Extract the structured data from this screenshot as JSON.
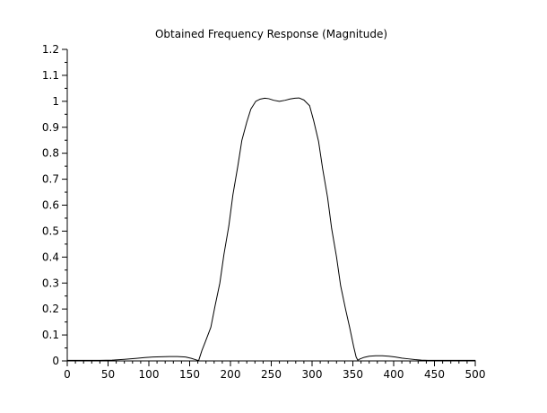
{
  "window": {
    "background": "#ffffff"
  },
  "chart_data": {
    "type": "line",
    "title": "Obtained Frequency Response (Magnitude)",
    "xlabel": "",
    "ylabel": "",
    "xlim": [
      0,
      500
    ],
    "ylim": [
      0,
      1.2
    ],
    "grid": false,
    "legend": null,
    "axis_color": "#000000",
    "line_color": "#000000",
    "x_major_ticks": [
      0,
      50,
      100,
      150,
      200,
      250,
      300,
      350,
      400,
      450,
      500
    ],
    "x_tick_labels": [
      "0",
      "50",
      "100",
      "150",
      "200",
      "250",
      "300",
      "350",
      "400",
      "450",
      "500"
    ],
    "x_minor_step": 10,
    "y_major_ticks": [
      0,
      0.1,
      0.2,
      0.3,
      0.4,
      0.5,
      0.6,
      0.7,
      0.8,
      0.9,
      1.0,
      1.1,
      1.2
    ],
    "y_tick_labels": [
      "0",
      "0.1",
      "0.2",
      "0.3",
      "0.4",
      "0.5",
      "0.6",
      "0.7",
      "0.8",
      "0.9",
      "1",
      "1.1",
      "1.2"
    ],
    "y_minor_step": 0.05,
    "series": [
      {
        "name": "magnitude",
        "points": [
          [
            0,
            0.002
          ],
          [
            20,
            0.002
          ],
          [
            40,
            0.002
          ],
          [
            55,
            0.003
          ],
          [
            70,
            0.006
          ],
          [
            85,
            0.01
          ],
          [
            95,
            0.013
          ],
          [
            105,
            0.015
          ],
          [
            115,
            0.016
          ],
          [
            125,
            0.017
          ],
          [
            135,
            0.017
          ],
          [
            145,
            0.015
          ],
          [
            152,
            0.01
          ],
          [
            157,
            0.005
          ],
          [
            161,
            0.001
          ],
          [
            165,
            0.04
          ],
          [
            170,
            0.08
          ],
          [
            176,
            0.13
          ],
          [
            181,
            0.21
          ],
          [
            187,
            0.3
          ],
          [
            192,
            0.41
          ],
          [
            198,
            0.52
          ],
          [
            203,
            0.64
          ],
          [
            209,
            0.75
          ],
          [
            214,
            0.85
          ],
          [
            220,
            0.92
          ],
          [
            225,
            0.97
          ],
          [
            231,
            1.0
          ],
          [
            236,
            1.008
          ],
          [
            242,
            1.012
          ],
          [
            247,
            1.01
          ],
          [
            253,
            1.004
          ],
          [
            260,
            1.0
          ],
          [
            267,
            1.004
          ],
          [
            273,
            1.009
          ],
          [
            279,
            1.012
          ],
          [
            284,
            1.013
          ],
          [
            290,
            1.005
          ],
          [
            297,
            0.983
          ],
          [
            302,
            0.925
          ],
          [
            308,
            0.845
          ],
          [
            313,
            0.74
          ],
          [
            319,
            0.63
          ],
          [
            324,
            0.51
          ],
          [
            330,
            0.4
          ],
          [
            335,
            0.29
          ],
          [
            341,
            0.2
          ],
          [
            346,
            0.13
          ],
          [
            351,
            0.055
          ],
          [
            354,
            0.015
          ],
          [
            356,
            0.003
          ],
          [
            359,
            0.008
          ],
          [
            364,
            0.014
          ],
          [
            370,
            0.018
          ],
          [
            378,
            0.02
          ],
          [
            386,
            0.02
          ],
          [
            394,
            0.018
          ],
          [
            402,
            0.015
          ],
          [
            410,
            0.011
          ],
          [
            418,
            0.008
          ],
          [
            426,
            0.005
          ],
          [
            434,
            0.003
          ],
          [
            442,
            0.002
          ],
          [
            460,
            0.002
          ],
          [
            480,
            0.002
          ],
          [
            500,
            0.002
          ]
        ]
      }
    ]
  }
}
